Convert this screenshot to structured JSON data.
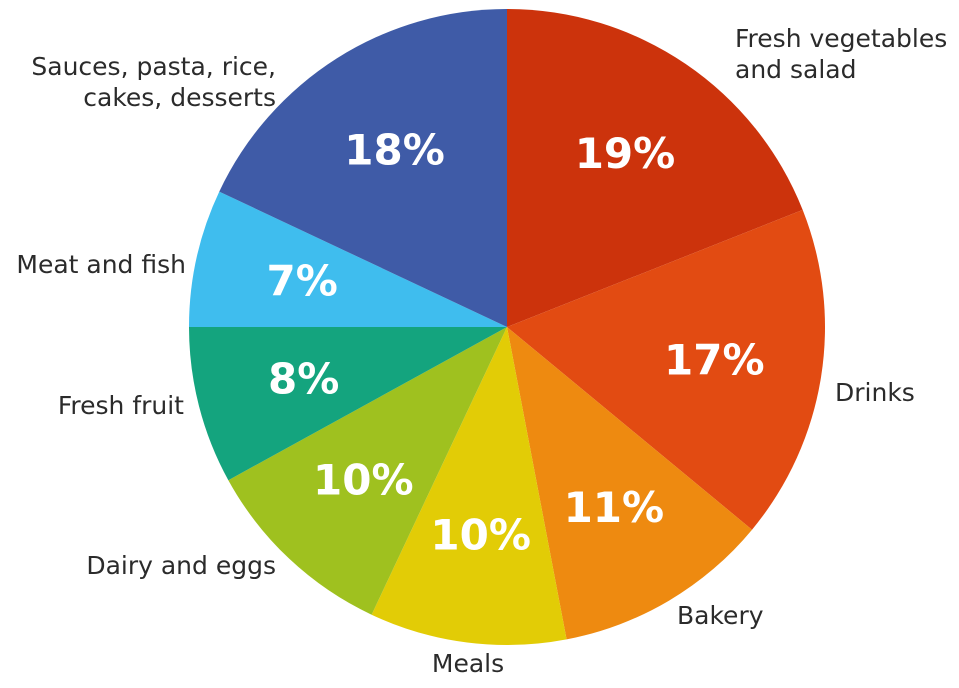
{
  "chart_data": {
    "type": "pie",
    "title": "",
    "slices": [
      {
        "label": [
          "Fresh vegetables",
          "and salad"
        ],
        "value": 19,
        "display": "19%",
        "color": "#cc330c"
      },
      {
        "label": [
          "Drinks"
        ],
        "value": 17,
        "display": "17%",
        "color": "#e24b12"
      },
      {
        "label": [
          "Bakery"
        ],
        "value": 11,
        "display": "11%",
        "color": "#ee8a10"
      },
      {
        "label": [
          "Meals"
        ],
        "value": 10,
        "display": "10%",
        "color": "#e2cc06"
      },
      {
        "label": [
          "Dairy and eggs"
        ],
        "value": 10,
        "display": "10%",
        "color": "#9fc11f"
      },
      {
        "label": [
          "Fresh fruit"
        ],
        "value": 8,
        "display": "8%",
        "color": "#14a47e"
      },
      {
        "label": [
          "Meat and fish"
        ],
        "value": 7,
        "display": "7%",
        "color": "#3fbdee"
      },
      {
        "label": [
          "Sauces, pasta, rice,",
          "cakes, desserts"
        ],
        "value": 18,
        "display": "18%",
        "color": "#3f5ba7"
      }
    ]
  }
}
